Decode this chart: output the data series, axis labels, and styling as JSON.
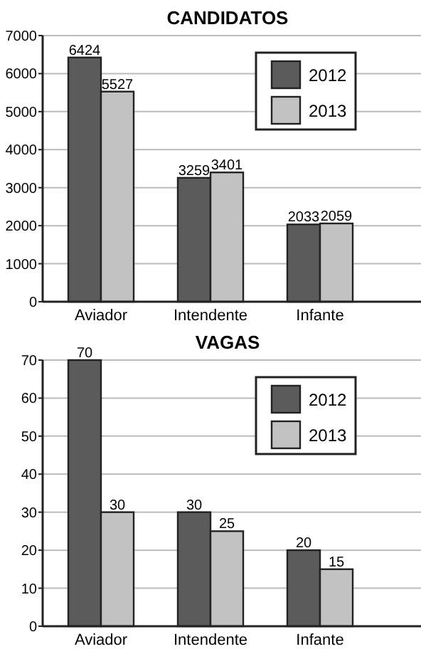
{
  "chart_data": [
    {
      "type": "bar",
      "title": "CANDIDATOS",
      "categories": [
        "Aviador",
        "Intendente",
        "Infante"
      ],
      "series": [
        {
          "name": "2012",
          "color": "#5b5b5b",
          "values": [
            6424,
            3259,
            2033
          ]
        },
        {
          "name": "2013",
          "color": "#c2c2c2",
          "values": [
            5527,
            3401,
            2059
          ]
        }
      ],
      "ylim": [
        0,
        7000
      ],
      "yticks": [
        0,
        1000,
        2000,
        3000,
        4000,
        5000,
        6000,
        7000
      ],
      "grid": "y",
      "legend": "top right",
      "data_labels": true
    },
    {
      "type": "bar",
      "title": "VAGAS",
      "categories": [
        "Aviador",
        "Intendente",
        "Infante"
      ],
      "series": [
        {
          "name": "2012",
          "color": "#5b5b5b",
          "values": [
            70,
            30,
            20
          ]
        },
        {
          "name": "2013",
          "color": "#c2c2c2",
          "values": [
            30,
            25,
            15
          ]
        }
      ],
      "ylim": [
        0,
        70
      ],
      "yticks": [
        0,
        10,
        20,
        30,
        40,
        50,
        60,
        70
      ],
      "grid": "y",
      "legend": "top right",
      "data_labels": true
    }
  ]
}
